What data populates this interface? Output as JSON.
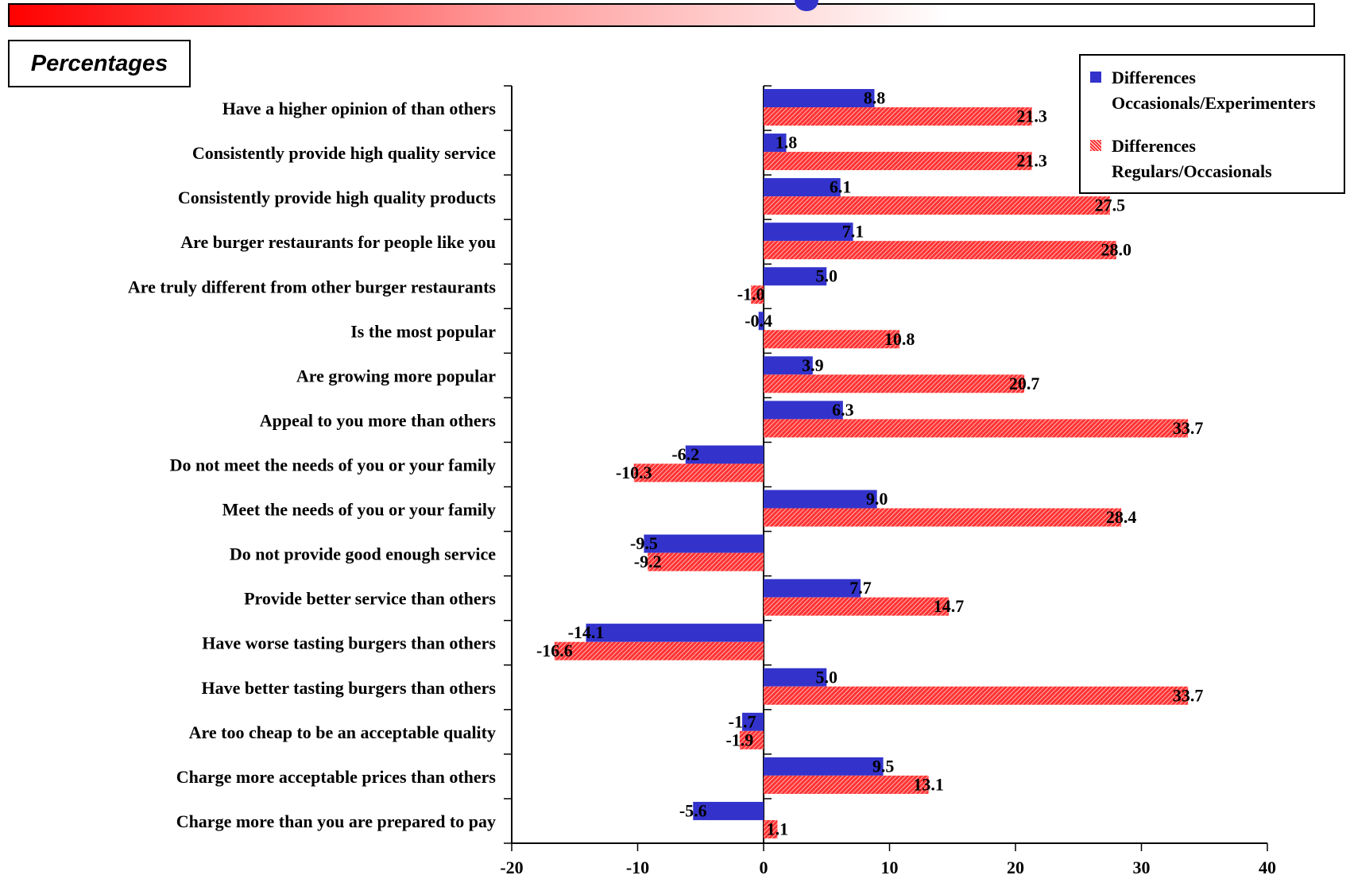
{
  "header": {
    "title": "Percentages"
  },
  "colors": {
    "series1": "#3333cc",
    "series2": "#ff3333",
    "series2_hatch": "#ffffff"
  },
  "legend": [
    {
      "line1": "Differences",
      "line2": "Occasionals/Experimenters"
    },
    {
      "line1": "Differences",
      "line2": "Regulars/Occasionals"
    }
  ],
  "chart_data": {
    "type": "bar",
    "orientation": "horizontal",
    "title": "Percentages",
    "categories": [
      "Have a higher opinion of than others",
      "Consistently provide high quality service",
      "Consistently provide high quality products",
      "Are burger restaurants for people like you",
      "Are truly different from other burger restaurants",
      "Is the most popular",
      "Are growing more popular",
      "Appeal to you more than others",
      "Do not meet the needs of you or your family",
      "Meet the needs of you or your family",
      "Do not provide good enough service",
      "Provide better service than others",
      "Have worse tasting burgers than others",
      "Have better tasting burgers than others",
      "Are too cheap to be an acceptable quality",
      "Charge more acceptable prices than others",
      "Charge more than you are prepared to pay"
    ],
    "series": [
      {
        "name": "Differences Occasionals/Experimenters",
        "values": [
          8.8,
          1.8,
          6.1,
          7.1,
          5.0,
          -0.4,
          3.9,
          6.3,
          -6.2,
          9.0,
          -9.5,
          7.7,
          -14.1,
          5.0,
          -1.7,
          9.5,
          -5.6
        ]
      },
      {
        "name": "Differences Regulars/Occasionals",
        "values": [
          21.3,
          21.3,
          27.5,
          28.0,
          -1.0,
          10.8,
          20.7,
          33.7,
          -10.3,
          28.4,
          -9.2,
          14.7,
          -16.6,
          33.7,
          -1.9,
          13.1,
          1.1
        ]
      }
    ],
    "xlim": [
      -20,
      40
    ],
    "xticks": [
      -20,
      -10,
      0,
      10,
      20,
      30,
      40
    ],
    "legend_position": "top-right"
  }
}
